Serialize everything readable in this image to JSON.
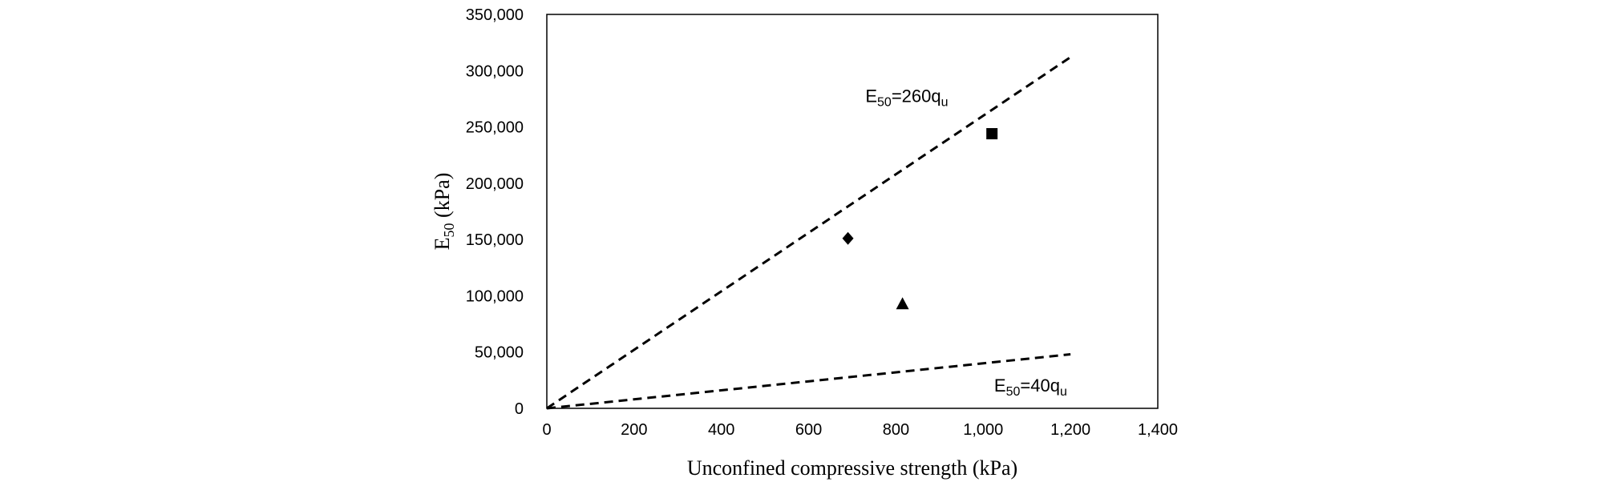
{
  "chart_data": {
    "type": "scatter",
    "title": "",
    "xlabel": "Unconfined compressive strength (kPa)",
    "ylabel": {
      "base": "E",
      "sub": "50",
      "rest": " (kPa)"
    },
    "xlim": [
      0,
      1400
    ],
    "ylim": [
      0,
      350000
    ],
    "xticks": [
      0,
      200,
      400,
      600,
      800,
      1000,
      1200,
      1400
    ],
    "yticks": [
      0,
      50000,
      100000,
      150000,
      200000,
      250000,
      300000,
      350000
    ],
    "xtick_labels": [
      "0",
      "200",
      "400",
      "600",
      "800",
      "1,000",
      "1,200",
      "1,400"
    ],
    "ytick_labels": [
      "0",
      "50,000",
      "100,000",
      "150,000",
      "200,000",
      "250,000",
      "300,000",
      "350,000"
    ],
    "grid": false,
    "series": [
      {
        "name": "diamond",
        "marker": "diamond",
        "points": [
          [
            690,
            151000
          ]
        ]
      },
      {
        "name": "square",
        "marker": "square",
        "points": [
          [
            1020,
            244000
          ]
        ]
      },
      {
        "name": "triangle",
        "marker": "triangle",
        "points": [
          [
            815,
            93000
          ]
        ]
      }
    ],
    "reference_lines": [
      {
        "name": "upper",
        "slope": 260,
        "x": [
          0,
          1200
        ],
        "label": {
          "pre": "E",
          "sub": "50",
          "mid": "=260q",
          "sub2": "u"
        },
        "label_anchor": [
          730,
          272000
        ]
      },
      {
        "name": "lower",
        "slope": 40,
        "x": [
          0,
          1200
        ],
        "label": {
          "pre": "E",
          "sub": "50",
          "mid": "=40q",
          "sub2": "u"
        },
        "label_anchor": [
          1025,
          15000
        ]
      }
    ]
  }
}
